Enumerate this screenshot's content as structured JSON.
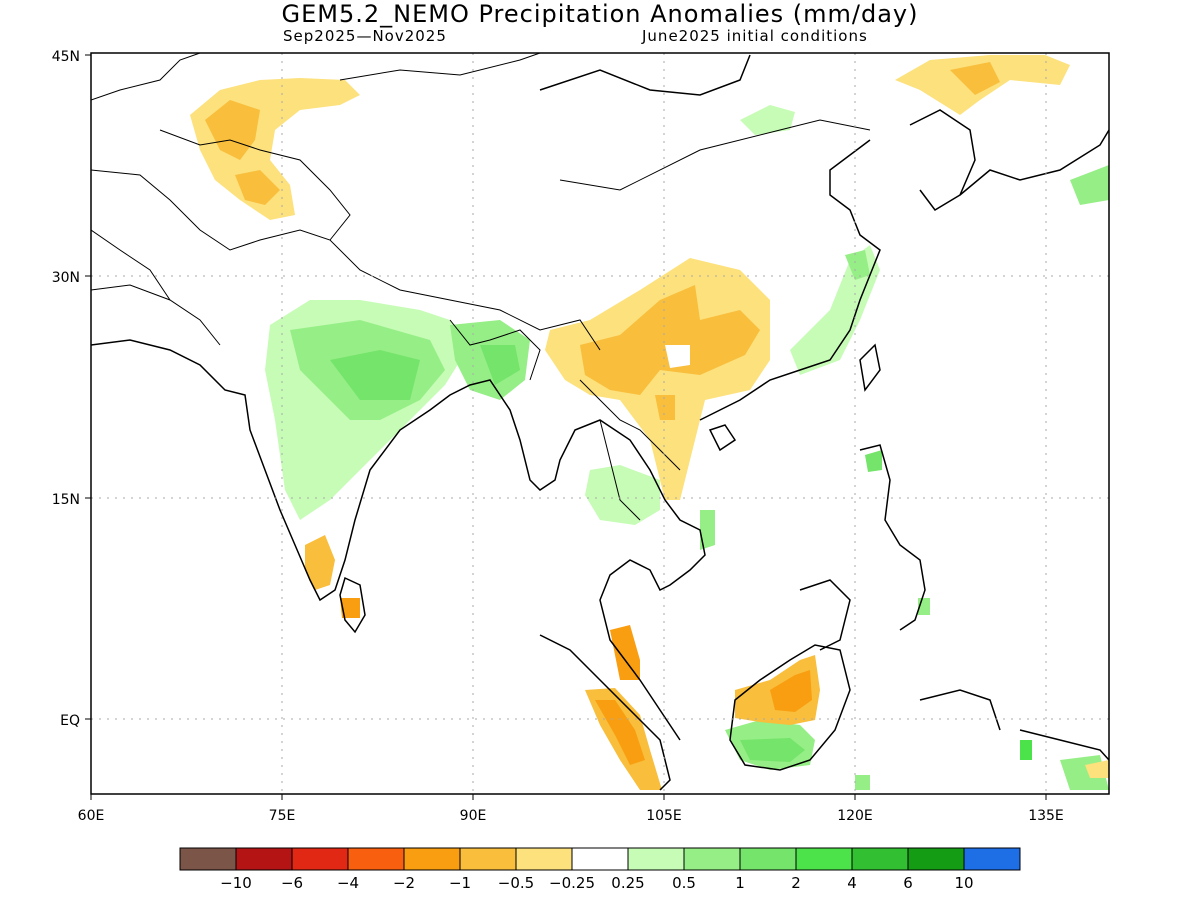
{
  "title": "GEM5.2_NEMO Precipitation Anomalies (mm/day)",
  "subtitle_left": "Sep2025—Nov2025",
  "subtitle_right": "June2025 initial conditions",
  "axes": {
    "x_ticks": [
      "60E",
      "75E",
      "90E",
      "105E",
      "120E",
      "135E"
    ],
    "y_ticks": [
      "45N",
      "30N",
      "15N",
      "EQ"
    ],
    "lon_range": [
      60,
      140
    ],
    "lat_range": [
      -5,
      45
    ]
  },
  "colorbar": {
    "colors": [
      "#7a5548",
      "#b41414",
      "#e02814",
      "#f86010",
      "#f89e10",
      "#f8be3c",
      "#fce17c",
      "#ffffff",
      "#c6fcb6",
      "#96ee86",
      "#74e46a",
      "#4ce24a",
      "#32c032",
      "#149c14",
      "#1e6ee6"
    ],
    "labels": [
      "−10",
      "−6",
      "−4",
      "−2",
      "−1",
      "−0.5",
      "−0.25",
      "0.25",
      "0.5",
      "1",
      "2",
      "4",
      "6",
      "10"
    ]
  },
  "chart_data": {
    "type": "heatmap",
    "title": "GEM5.2_NEMO Precipitation Anomalies (mm/day)",
    "period": "Sep2025—Nov2025",
    "initial_conditions": "June2025 initial conditions",
    "units": "mm/day",
    "xlim": [
      60,
      140
    ],
    "ylim": [
      -5,
      45
    ],
    "levels": [
      -10,
      -6,
      -4,
      -2,
      -1,
      -0.5,
      -0.25,
      0.25,
      0.5,
      1,
      2,
      4,
      6,
      10
    ],
    "anomaly_regions": [
      {
        "region": "Northern Pakistan / Kashmir",
        "range": "-0.5 to -1",
        "sign": "dry"
      },
      {
        "region": "Northern India / Indo-Gangetic Plain",
        "range": "0.25 to 1",
        "sign": "wet"
      },
      {
        "region": "Bangladesh / Northeast India",
        "range": "0.5 to 1",
        "sign": "wet"
      },
      {
        "region": "Southern China / Yunnan / Guangxi",
        "range": "-0.25 to -1",
        "sign": "dry"
      },
      {
        "region": "Laos / northern Vietnam",
        "range": "-0.25 to -1",
        "sign": "dry"
      },
      {
        "region": "Southeast China coast",
        "range": "0.25 to 0.5",
        "sign": "wet"
      },
      {
        "region": "Southern India / Sri Lanka",
        "range": "-0.5 to -1",
        "sign": "dry"
      },
      {
        "region": "Sumatra / Malay Peninsula",
        "range": "-0.5 to -2",
        "sign": "dry"
      },
      {
        "region": "Borneo (northwest)",
        "range": "-0.25 to -1",
        "sign": "dry"
      },
      {
        "region": "Borneo (south)",
        "range": "0.25 to 1",
        "sign": "wet"
      },
      {
        "region": "Korea / Northeast China",
        "range": "-0.25 to -0.5",
        "sign": "dry"
      },
      {
        "region": "Philippines / Japan",
        "range": "0.5 to 1",
        "sign": "wet"
      }
    ]
  }
}
